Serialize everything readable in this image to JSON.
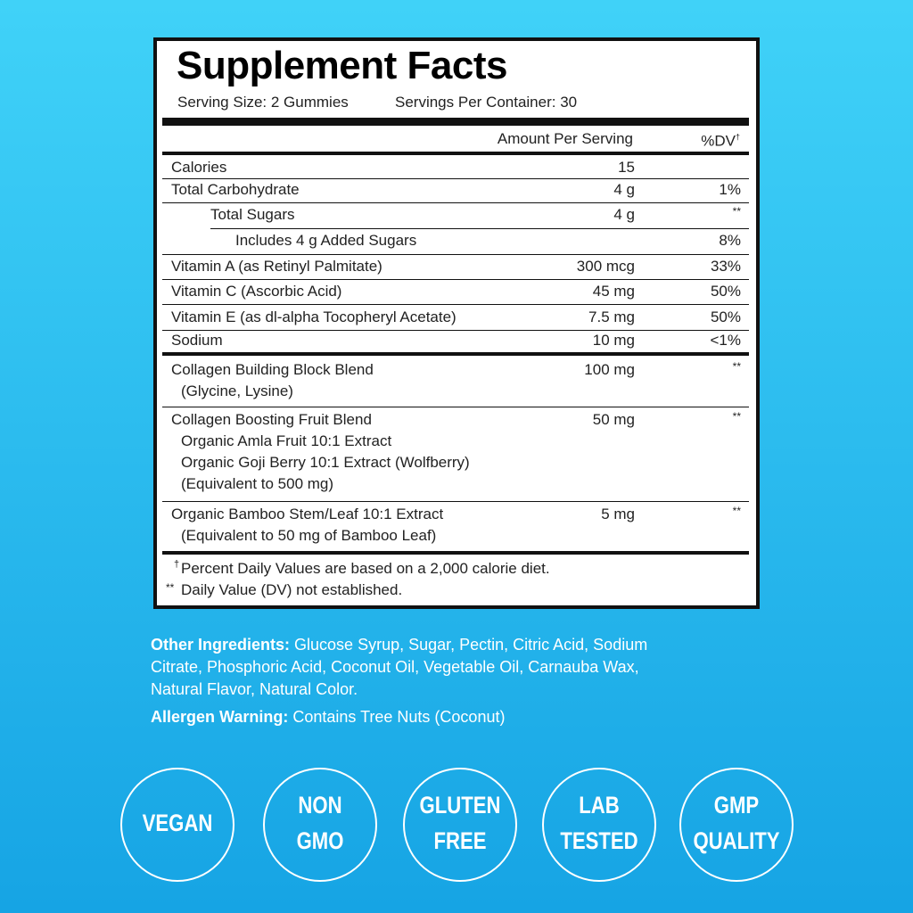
{
  "panel": {
    "title": "Supplement Facts",
    "serving_size": "Serving Size: 2 Gummies",
    "servings_per_container": "Servings Per Container: 30",
    "header": {
      "amount": "Amount Per Serving",
      "dv": "%DV",
      "dv_mark": "†"
    },
    "rows": [
      {
        "lines": [
          "Calories"
        ],
        "amount": "15"
      },
      {
        "lines": [
          "Total Carbohydrate"
        ],
        "amount": "4 g",
        "dv": "1%"
      },
      {
        "lines": [
          "Total Sugars"
        ],
        "amount": "4 g",
        "dv": "**"
      },
      {
        "lines": [
          "Includes 4 g Added Sugars"
        ],
        "dv": "8%"
      },
      {
        "lines": [
          "Vitamin A (as Retinyl Palmitate)"
        ],
        "amount": "300 mcg",
        "dv": "33%"
      },
      {
        "lines": [
          "Vitamin C (Ascorbic Acid)"
        ],
        "amount": "45 mg",
        "dv": "50%"
      },
      {
        "lines": [
          "Vitamin E (as dl-alpha Tocopheryl Acetate)"
        ],
        "amount": "7.5 mg",
        "dv": "50%"
      },
      {
        "lines": [
          "Sodium"
        ],
        "amount": "10 mg",
        "dv": "<1%"
      },
      {
        "lines": [
          "Collagen Building Block Blend",
          "(Glycine, Lysine)"
        ],
        "amount": "100 mg",
        "dv": "**"
      },
      {
        "lines": [
          "Collagen Boosting Fruit Blend",
          "Organic Amla Fruit 10:1 Extract",
          "Organic Goji Berry 10:1 Extract (Wolfberry)",
          "(Equivalent to 500 mg)"
        ],
        "amount": "50 mg",
        "dv": "**"
      },
      {
        "lines": [
          "Organic Bamboo Stem/Leaf 10:1 Extract",
          "(Equivalent to 50 mg of Bamboo Leaf)"
        ],
        "amount": "5 mg",
        "dv": "**"
      }
    ],
    "footnotes": [
      {
        "mark": "†",
        "text": "Percent Daily Values are based on a 2,000 calorie diet."
      },
      {
        "mark": "**",
        "text": "Daily Value (DV) not established."
      }
    ]
  },
  "other_ingredients": {
    "label": "Other Ingredients:",
    "lines": [
      "Glucose Syrup, Sugar, Pectin, Citric Acid, Sodium",
      "Citrate, Phosphoric Acid, Coconut Oil, Vegetable Oil, Carnauba Wax,",
      "Natural Flavor, Natural Color."
    ]
  },
  "allergen": {
    "label": "Allergen Warning:",
    "text": "Contains Tree Nuts (Coconut)"
  },
  "badges": [
    [
      "VEGAN"
    ],
    [
      "NON",
      "GMO"
    ],
    [
      "GLUTEN",
      "FREE"
    ],
    [
      "LAB",
      "TESTED"
    ],
    [
      "GMP",
      "QUALITY"
    ]
  ]
}
